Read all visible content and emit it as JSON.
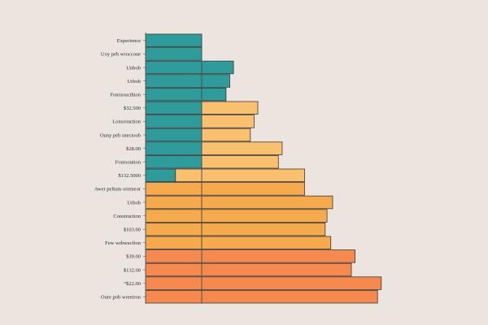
{
  "chart_data": {
    "type": "bar",
    "orientation": "horizontal",
    "stacked": true,
    "categories": [
      "Experience",
      "Uoy peb wroccone",
      "Unbob",
      "Urbob",
      "Fonrsoucthion",
      "$32.500",
      "Lonsrouction",
      "Ouny peb snectoob",
      "$28.00",
      "Fonrsoution",
      "$132.5000",
      "Awer peltum orreneor",
      "Urbob",
      "Construction",
      "$103.00",
      "Few wrbwecfion",
      "$39.00",
      "$132.00",
      "“$22.00",
      "Oure pob wreetron"
    ],
    "segments": [
      {
        "values": [
          30,
          30,
          30,
          30,
          30,
          30,
          30,
          30,
          30,
          30,
          16,
          30,
          30,
          30,
          30,
          30,
          30,
          30,
          30,
          30
        ],
        "colors": [
          "#2E9C9A",
          "#2E9C9A",
          "#2E9C9A",
          "#2E9C9A",
          "#2E9C9A",
          "#2E9C9A",
          "#2E9C9A",
          "#2E9C9A",
          "#2E9C9A",
          "#2E9C9A",
          "#2E9C9A",
          "#F7AA4C",
          "#F7AA4C",
          "#F7AA4C",
          "#F7AA4C",
          "#F7AA4C",
          "#F68A4E",
          "#F68A4E",
          "#F68A4E",
          "#F68A4E"
        ]
      },
      {
        "values": [
          0,
          0,
          17,
          15,
          13,
          0,
          0,
          0,
          0,
          0,
          14,
          0,
          0,
          0,
          0,
          0,
          0,
          0,
          0,
          0
        ],
        "colors": [
          "#2E9C9A",
          "#2E9C9A",
          "#2E9C9A",
          "#2E9C9A",
          "#2E9C9A",
          "#FAC06E",
          "#FAC06E",
          "#FAC06E",
          "#FAC06E",
          "#FAC06E",
          "#FAC06E",
          "#F7AA4C",
          "#F7AA4C",
          "#F7AA4C",
          "#F7AA4C",
          "#F7AA4C",
          "#F68A4E",
          "#F68A4E",
          "#F68A4E",
          "#F68A4E"
        ]
      },
      {
        "values": [
          0,
          0,
          0,
          0,
          0,
          30,
          28,
          26,
          43,
          41,
          55,
          55,
          70,
          67,
          66,
          69,
          82,
          80,
          96,
          94
        ],
        "colors": [
          "#FAC06E",
          "#FAC06E",
          "#FAC06E",
          "#FAC06E",
          "#FAC06E",
          "#FAC06E",
          "#FAC06E",
          "#FAC06E",
          "#FAC06E",
          "#FAC06E",
          "#FAC06E",
          "#F7AA4C",
          "#F7AA4C",
          "#F7AA4C",
          "#F7AA4C",
          "#F7AA4C",
          "#F68A4E",
          "#F68A4E",
          "#F68A4E",
          "#F68A4E"
        ]
      }
    ],
    "segment_boundary": 30,
    "xlim": [
      0,
      135
    ],
    "title": "",
    "xlabel": "",
    "ylabel": "",
    "grid": false,
    "legend": "none"
  }
}
